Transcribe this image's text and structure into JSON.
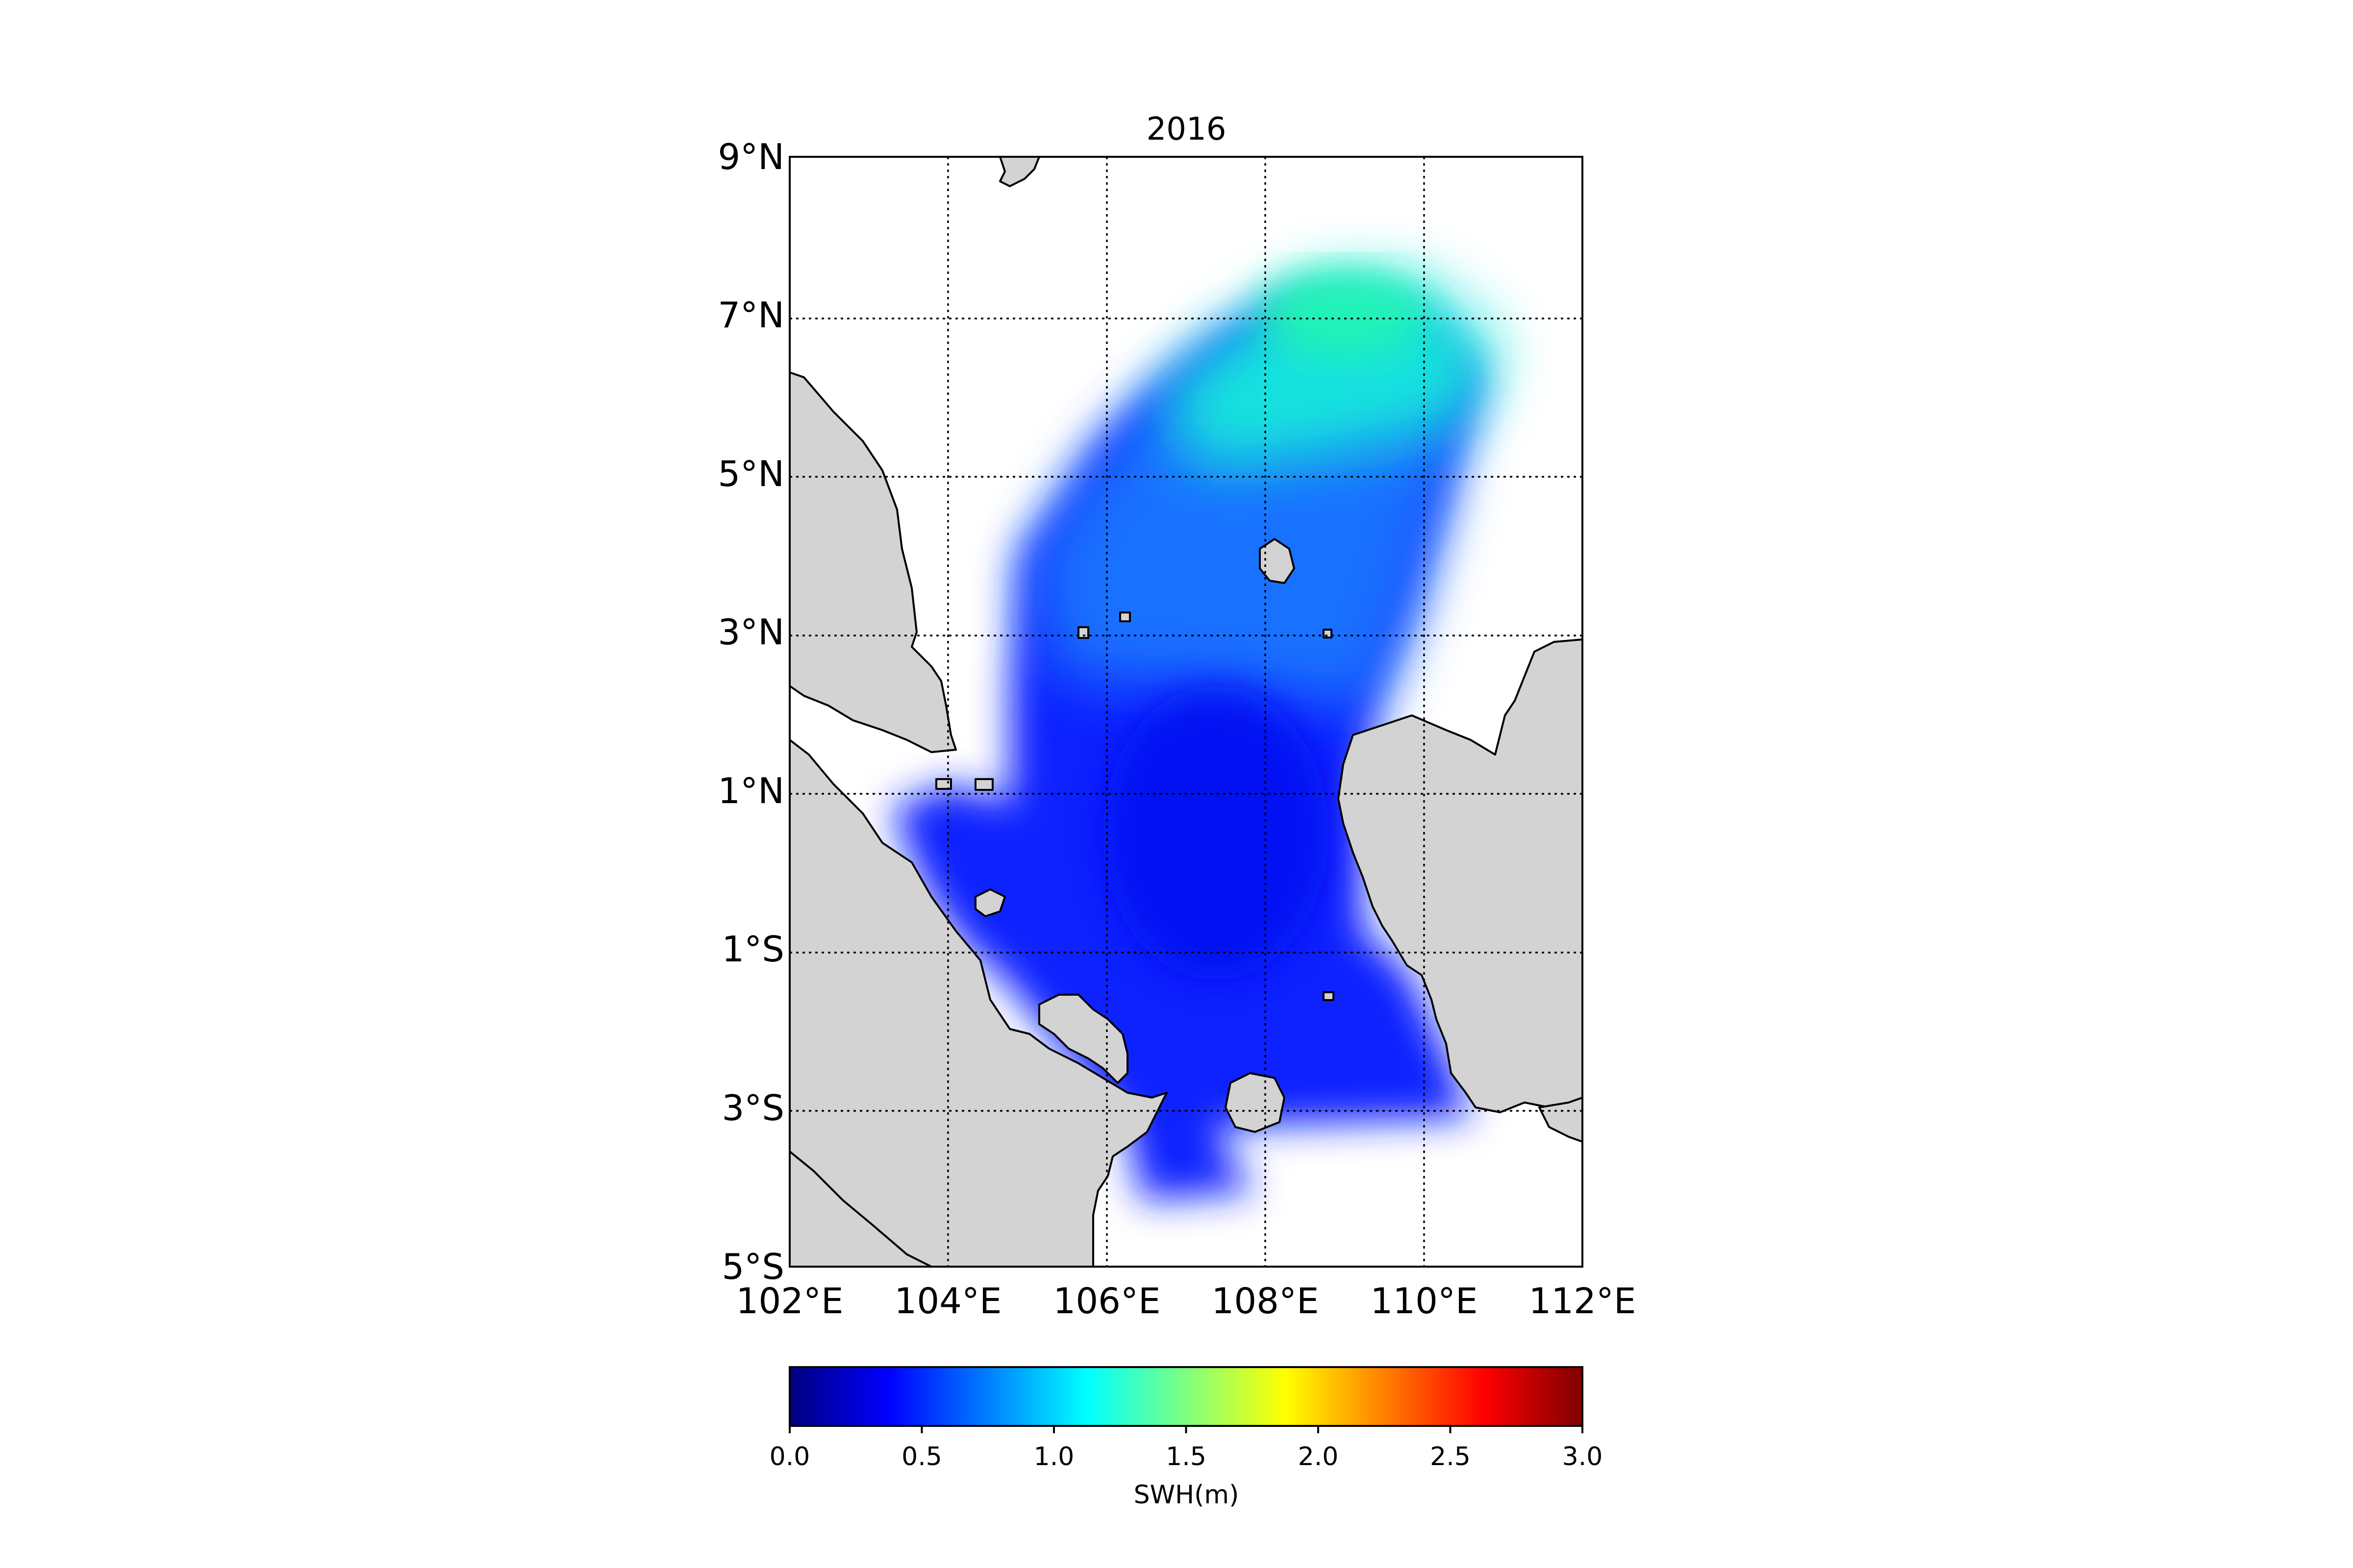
{
  "title": "2016",
  "map": {
    "lon_range": [
      102,
      112
    ],
    "lat_range": [
      -5,
      9
    ],
    "gridlines": "dotted",
    "land_color": "#d3d3d3",
    "ocean_color": "#ffffff",
    "coastline_color": "#000000",
    "lon_ticks": [
      "102°E",
      "104°E",
      "106°E",
      "108°E",
      "110°E",
      "112°E"
    ],
    "lat_ticks": [
      "9°N",
      "7°N",
      "5°N",
      "3°N",
      "1°N",
      "1°S",
      "3°S",
      "5°S"
    ],
    "field_variable": "SWH",
    "field_range_shown_m": [
      0.3,
      1.3
    ]
  },
  "colorbar": {
    "label": "SWH(m)",
    "colormap": "jet",
    "range": [
      0.0,
      3.0
    ],
    "ticks": [
      "0.0",
      "0.5",
      "1.0",
      "1.5",
      "2.0",
      "2.5",
      "3.0"
    ],
    "orientation": "horizontal"
  }
}
